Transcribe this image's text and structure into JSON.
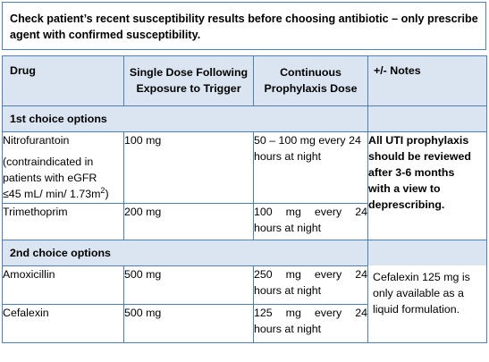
{
  "warning": "Check patient’s recent susceptibility results before choosing antibiotic – only prescribe agent with confirmed susceptibility.",
  "headers": {
    "drug": "Drug",
    "single_dose": [
      "Single Dose Following",
      "Exposure to Trigger"
    ],
    "continuous": [
      "Continuous",
      "Prophylaxis Dose"
    ],
    "notes": "+/- Notes"
  },
  "sections": {
    "first": "1st choice options",
    "second": "2nd choice options"
  },
  "rows": {
    "nitrofurantoin": {
      "drug": "Nitrofurantoin",
      "drug_note": [
        "(contraindicated in",
        "patients with eGFR",
        "≤45 mL/ min/ 1.73m",
        "2",
        ")"
      ],
      "single": "100 mg",
      "continuous": [
        "50 – 100 mg every 24",
        "hours at night"
      ]
    },
    "trimethoprim": {
      "drug": "Trimethoprim",
      "single": "200 mg",
      "continuous": [
        "100 mg every 24",
        "hours at night"
      ]
    },
    "amoxicillin": {
      "drug": "Amoxicillin",
      "single": "500 mg",
      "continuous": [
        "250 mg every 24",
        "hours at night"
      ]
    },
    "cefalexin": {
      "drug": "Cefalexin",
      "single": "500 mg",
      "continuous": [
        "125 mg every 24",
        "hours at night"
      ]
    }
  },
  "notes": {
    "prophylaxis": [
      "All UTI prophylaxis",
      "should be reviewed",
      "after 3-6 months",
      "with a view to",
      "deprescribing."
    ],
    "cefalexin": [
      "Cefalexin 125 mg is",
      "only available as a",
      "liquid formulation."
    ]
  },
  "colors": {
    "border": "#4f7fb8",
    "header_fill": "#dbe5f1"
  }
}
